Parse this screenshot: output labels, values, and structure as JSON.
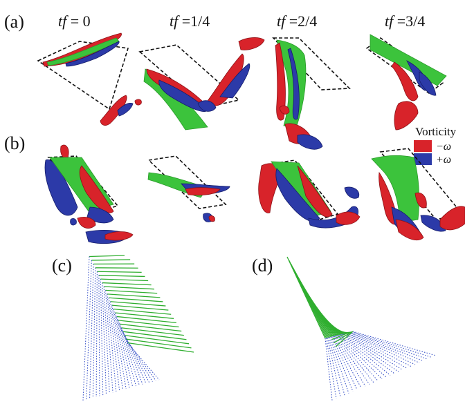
{
  "panels": {
    "a": "(a)",
    "b": "(b)",
    "c": "(c)",
    "d": "(d)"
  },
  "time_labels": [
    {
      "var": "tf",
      "rest": " = 0"
    },
    {
      "var": "tf",
      "rest": " =1/4"
    },
    {
      "var": "tf",
      "rest": " =2/4"
    },
    {
      "var": "tf",
      "rest": " =3/4"
    }
  ],
  "legend": {
    "title": "Vorticity",
    "items": [
      {
        "label": "−ω",
        "color": "#d8232a"
      },
      {
        "label": "+ω",
        "color": "#2c3aa8"
      }
    ]
  },
  "colors": {
    "plate": "#3cc33c",
    "positive_vorticity": "#2c3aa8",
    "negative_vorticity": "#d8232a",
    "filament_solid": "#2fae2f",
    "filament_dotted": "#3b54c8"
  }
}
